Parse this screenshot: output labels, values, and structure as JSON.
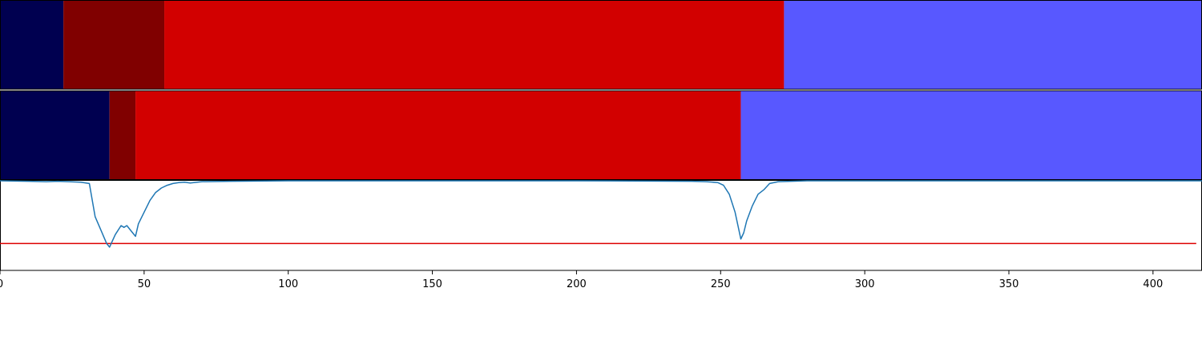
{
  "chart_data": {
    "type": "segmentation-timeline",
    "xlim": [
      0,
      417
    ],
    "ylim": [
      0,
      1
    ],
    "grid": false,
    "legend": "none",
    "xticks": [
      0,
      50,
      100,
      150,
      200,
      250,
      300,
      350,
      400
    ],
    "xtick_labels": [
      "0",
      "50",
      "100",
      "150",
      "200",
      "250",
      "300",
      "350",
      "400"
    ],
    "segment_rows": [
      {
        "segments": [
          {
            "start": 0,
            "end": 22,
            "color": "#000050"
          },
          {
            "start": 22,
            "end": 57,
            "color": "#800000"
          },
          {
            "start": 57,
            "end": 272,
            "color": "#d20000"
          },
          {
            "start": 272,
            "end": 417,
            "color": "#5858ff"
          }
        ]
      },
      {
        "segments": [
          {
            "start": 0,
            "end": 38,
            "color": "#000050"
          },
          {
            "start": 38,
            "end": 47,
            "color": "#800000"
          },
          {
            "start": 47,
            "end": 257,
            "color": "#d20000"
          },
          {
            "start": 257,
            "end": 417,
            "color": "#5858ff"
          }
        ]
      }
    ],
    "signal": {
      "color": "#1f77b4",
      "x": [
        0,
        10,
        16,
        20,
        24,
        28,
        31,
        33,
        35,
        37,
        38,
        40,
        42,
        43,
        44,
        46,
        47,
        48,
        50,
        52,
        54,
        56,
        58,
        60,
        62,
        64,
        66,
        70,
        80,
        100,
        150,
        200,
        240,
        245,
        249,
        251,
        253,
        255,
        256,
        257,
        258,
        259,
        261,
        263,
        265,
        267,
        270,
        280,
        417
      ],
      "y": [
        1.0,
        0.995,
        0.99,
        0.995,
        0.99,
        0.985,
        0.97,
        0.6,
        0.45,
        0.3,
        0.26,
        0.4,
        0.5,
        0.48,
        0.5,
        0.42,
        0.38,
        0.52,
        0.65,
        0.78,
        0.87,
        0.92,
        0.95,
        0.97,
        0.98,
        0.985,
        0.975,
        0.99,
        0.995,
        1.0,
        1.0,
        1.0,
        0.995,
        0.99,
        0.98,
        0.95,
        0.85,
        0.65,
        0.5,
        0.35,
        0.42,
        0.55,
        0.72,
        0.85,
        0.9,
        0.97,
        0.99,
        1.0,
        1.0
      ]
    },
    "threshold": {
      "value": 0.3,
      "color": "#dd0000"
    }
  }
}
